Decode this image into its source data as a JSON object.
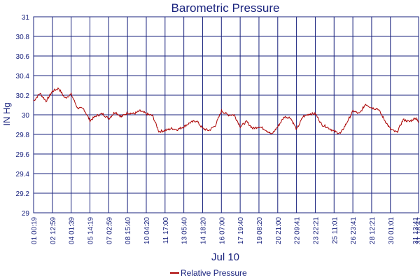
{
  "chart_data": {
    "type": "line",
    "title": "Barometric Pressure",
    "ylabel": "IN Hg",
    "xlabel": "Jul 10",
    "ylim": [
      29,
      31
    ],
    "yticks": [
      "29",
      "29.2",
      "29.4",
      "29.6",
      "29.8",
      "30",
      "30.2",
      "30.4",
      "30.6",
      "30.8",
      "31"
    ],
    "xticks": [
      "01 00:19",
      "02 12:59",
      "04 01:39",
      "05 14:19",
      "07 02:59",
      "08 15:40",
      "10 04:20",
      "11 17:00",
      "13 05:40",
      "14 18:20",
      "16 07:00",
      "17 19:40",
      "19 08:20",
      "20 21:00",
      "22 09:41",
      "23 22:21",
      "25 11:01",
      "26 23:41",
      "28 12:21",
      "30 01:01",
      "31 13:41",
      "31 18:41"
    ],
    "xlim": [
      0,
      30.73
    ],
    "x_unit": "days from 01 00:19",
    "grid": true,
    "legend": "bottom-center",
    "colors": {
      "series": "#aa0000",
      "grid": "#1a237e",
      "text": "#1a237e"
    },
    "series": [
      {
        "name": "Relative Pressure",
        "x": [
          0,
          0.5,
          1.0,
          1.5,
          2.0,
          2.5,
          3.0,
          3.5,
          4.0,
          4.5,
          5.0,
          5.5,
          6.0,
          6.5,
          7.0,
          7.5,
          8.0,
          8.5,
          9.0,
          9.5,
          10.0,
          10.5,
          11.0,
          11.5,
          12.0,
          12.5,
          13.0,
          13.5,
          14.0,
          14.5,
          15.0,
          15.5,
          16.0,
          16.5,
          17.0,
          17.5,
          18.0,
          18.5,
          19.0,
          19.5,
          20.0,
          20.5,
          21.0,
          21.5,
          22.0,
          22.5,
          23.0,
          23.5,
          24.0,
          24.5,
          25.0,
          25.5,
          26.0,
          26.5,
          27.0,
          27.5,
          28.0,
          28.5,
          29.0,
          29.5,
          30.0,
          30.5,
          30.73
        ],
        "values": [
          30.14,
          30.22,
          30.14,
          30.24,
          30.27,
          30.17,
          30.21,
          30.07,
          30.06,
          29.94,
          29.99,
          30.01,
          29.96,
          30.03,
          29.98,
          30.02,
          30.01,
          30.04,
          30.01,
          29.99,
          29.83,
          29.84,
          29.86,
          29.85,
          29.88,
          29.92,
          29.94,
          29.86,
          29.84,
          29.89,
          30.04,
          30.0,
          30.0,
          29.88,
          29.93,
          29.86,
          29.88,
          29.85,
          29.8,
          29.88,
          29.98,
          29.97,
          29.85,
          29.98,
          30.01,
          30.01,
          29.9,
          29.87,
          29.83,
          29.81,
          29.92,
          30.04,
          30.01,
          30.11,
          30.07,
          30.06,
          29.95,
          29.85,
          29.82,
          29.95,
          29.93,
          29.97,
          29.92
        ]
      }
    ]
  }
}
